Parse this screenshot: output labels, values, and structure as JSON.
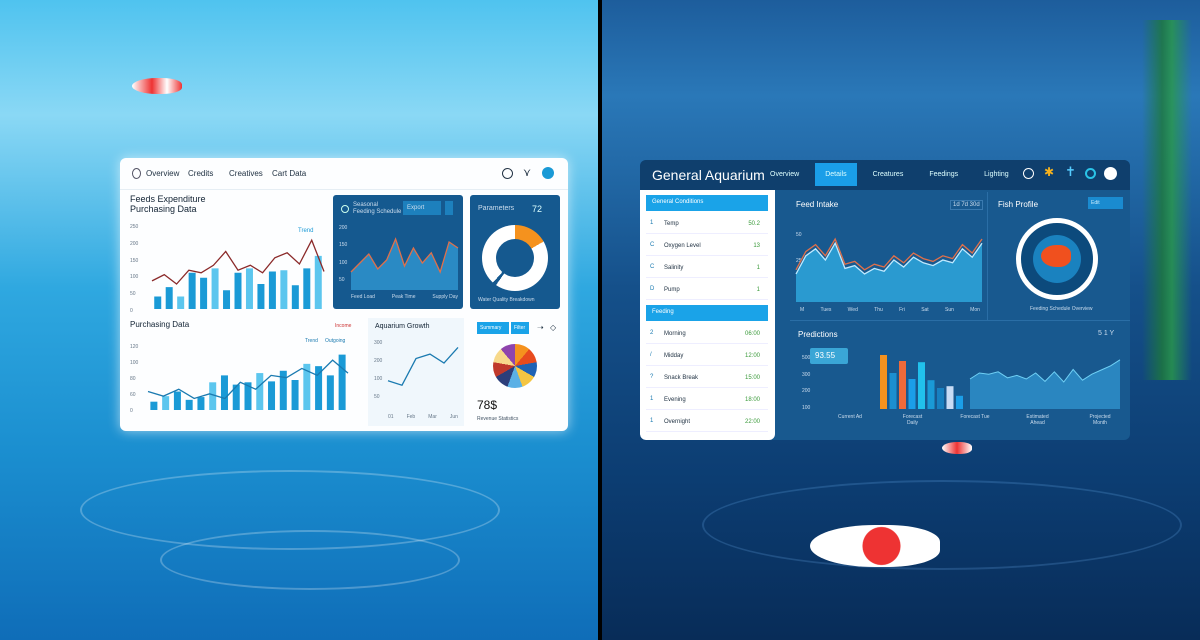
{
  "left_dashboard": {
    "nav": [
      "Overview",
      "Credits",
      "Creatives",
      "Cart Data"
    ],
    "main_chart": {
      "title": "Feeds Expenditure",
      "subtitle": "Purchasing Data",
      "tag": "Trend",
      "y_ticks": [
        "250",
        "200",
        "150",
        "100",
        "50",
        "0"
      ],
      "bars": [
        20,
        35,
        20,
        58,
        50,
        65,
        30,
        58,
        65,
        40,
        60,
        62,
        38,
        65,
        85
      ],
      "line": [
        45,
        55,
        40,
        62,
        58,
        70,
        92,
        62,
        70,
        58,
        82,
        90,
        72,
        110,
        60
      ]
    },
    "dark_chart": {
      "title": "Seasonal",
      "subtitle": "Feeding Schedule",
      "button": "Export",
      "y_ticks": [
        "200",
        "150",
        "100",
        "50"
      ],
      "x_ticks": [
        "Feed Load",
        "Peak Time",
        "Supply Day"
      ],
      "values": [
        30,
        45,
        60,
        35,
        50,
        85,
        40,
        70,
        45,
        62,
        30,
        80,
        70
      ]
    },
    "donut": {
      "title": "Parameters",
      "value": "72",
      "caption": "Water Quality Breakdown",
      "accent": "#f5921e"
    },
    "bottom_bar": {
      "title": "Purchasing Data",
      "legend": "Income",
      "tags": [
        "Trend",
        "Outgoing"
      ],
      "y_ticks": [
        "120",
        "100",
        "80",
        "60",
        "0"
      ],
      "bars": [
        18,
        30,
        40,
        22,
        28,
        60,
        75,
        55,
        60,
        80,
        62,
        85,
        65,
        100,
        95,
        75,
        120
      ],
      "line": [
        40,
        30,
        45,
        25,
        35,
        25,
        60,
        45,
        75,
        70,
        90,
        75,
        108,
        80
      ]
    },
    "line_chart": {
      "title": "Aquarium Growth",
      "y_ticks": [
        "300",
        "200",
        "100",
        "50"
      ],
      "x_ticks": [
        "01",
        "Feb",
        "Mar",
        "Jun"
      ],
      "values": [
        150,
        130,
        250,
        270,
        230,
        300
      ]
    },
    "pie": {
      "buttons": [
        "Summary",
        "Filter"
      ],
      "value": "78$",
      "caption": "Revenue Statistics",
      "slices": [
        "#f5921e",
        "#e84b1e",
        "#1f63b5",
        "#f4c542",
        "#5ab0e6",
        "#2c3e7a",
        "#c0392b",
        "#f7d98b",
        "#8e44ad"
      ]
    }
  },
  "right_dashboard": {
    "title": "General Aquarium",
    "nav": [
      {
        "label": "Overview",
        "active": false
      },
      {
        "label": "Details",
        "active": true
      },
      {
        "label": "Creatures",
        "active": false
      },
      {
        "label": "Feedings",
        "active": false
      },
      {
        "label": "Lighting",
        "active": false
      }
    ],
    "sidebar": {
      "section1": "General Conditions",
      "items1": [
        {
          "icon": "1",
          "label": "Temp",
          "value": "50.2"
        },
        {
          "icon": "C",
          "label": "Oxygen Level",
          "value": "13"
        },
        {
          "icon": "C",
          "label": "Salinity",
          "value": "1"
        },
        {
          "icon": "D",
          "label": "Pump",
          "value": "1"
        }
      ],
      "section2": "Feeding",
      "items2": [
        {
          "icon": "2",
          "label": "Morning",
          "value": "06:00"
        },
        {
          "icon": "/",
          "label": "Midday",
          "value": "12:00"
        },
        {
          "icon": "?",
          "label": "Snack Break",
          "value": "15:00"
        },
        {
          "icon": "1",
          "label": "Evening",
          "value": "18:00"
        },
        {
          "icon": "1",
          "label": "Overnight",
          "value": "22:00"
        }
      ]
    },
    "area_chart": {
      "title": "Feed Intake",
      "controls": "1d 7d 30d",
      "y_ticks": [
        "50",
        "25"
      ],
      "x_ticks": [
        "M",
        "Tues",
        "Wed",
        "Thu",
        "Fri",
        "Sat",
        "Sun",
        "Mon"
      ],
      "values": [
        20,
        33,
        38,
        30,
        42,
        24,
        26,
        20,
        24,
        22,
        30,
        25,
        32,
        28,
        26,
        30,
        28,
        38,
        32,
        42
      ]
    },
    "fish_panel": {
      "title": "Fish Profile",
      "button": "Edit",
      "caption": "Feeding Schedule Overview"
    },
    "bottom": {
      "title": "Predictions",
      "badge": "93.55",
      "controls": "5 1 Y",
      "y_ticks": [
        "500",
        "300",
        "200",
        "100"
      ],
      "x_ticks": [
        "Current Ad",
        "Forecast Daily",
        "Forecast Tue",
        "Estimated Ahead",
        "Projected Month"
      ],
      "bars": [
        {
          "v": 90,
          "c": "#f5921e"
        },
        {
          "v": 60,
          "c": "#1b8fd0"
        },
        {
          "v": 80,
          "c": "#ee6a3a"
        },
        {
          "v": 50,
          "c": "#1b9ee8"
        },
        {
          "v": 78,
          "c": "#21c1ec"
        },
        {
          "v": 48,
          "c": "#1a9ad6"
        },
        {
          "v": 35,
          "c": "#1780c0"
        },
        {
          "v": 38,
          "c": "#c8dcf5"
        },
        {
          "v": 22,
          "c": "#1b9ee8"
        }
      ],
      "area": [
        50,
        60,
        58,
        62,
        52,
        56,
        50,
        60,
        46,
        62,
        45,
        66,
        48,
        58,
        65,
        72,
        82
      ]
    }
  }
}
